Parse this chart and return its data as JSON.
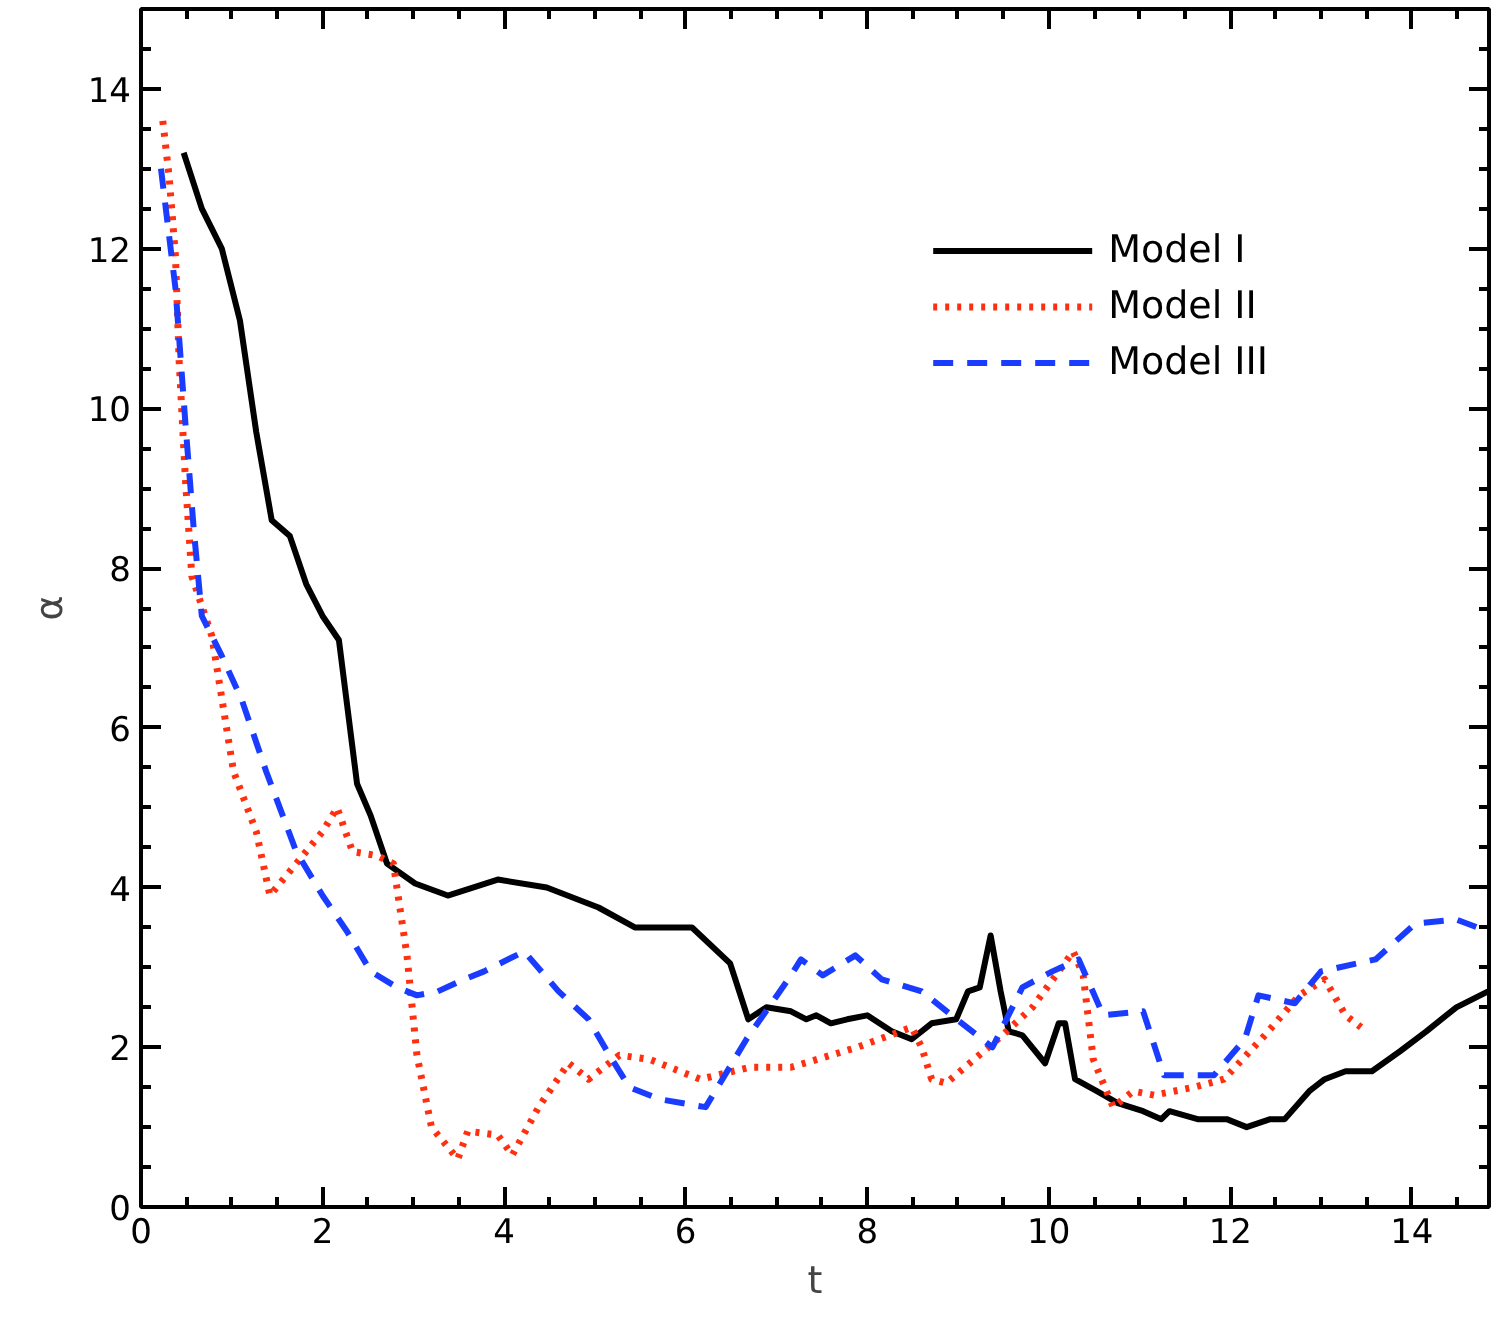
{
  "chart_data": {
    "type": "line",
    "xlabel": "t",
    "ylabel": "α",
    "xlim": [
      0,
      14.85
    ],
    "ylim": [
      0,
      15
    ],
    "xticks": [
      0,
      2,
      4,
      6,
      8,
      10,
      12,
      14
    ],
    "yticks": [
      0,
      2,
      4,
      6,
      8,
      10,
      12,
      14
    ],
    "grid": false,
    "legend": "top right",
    "marker": "none",
    "series": [
      {
        "name": "Model I",
        "color": "#000000",
        "line_style": "solid",
        "x": [
          0.47,
          0.67,
          0.89,
          1.09,
          1.27,
          1.44,
          1.64,
          1.82,
          2.0,
          2.18,
          2.38,
          2.53,
          2.71,
          3.02,
          3.38,
          3.93,
          4.47,
          5.04,
          5.44,
          6.07,
          6.49,
          6.69,
          6.89,
          7.16,
          7.33,
          7.44,
          7.6,
          7.78,
          8.0,
          8.27,
          8.49,
          8.71,
          8.98,
          9.11,
          9.24,
          9.36,
          9.47,
          9.56,
          9.71,
          9.96,
          10.11,
          10.18,
          10.29,
          10.53,
          10.76,
          11.04,
          11.24,
          11.33,
          11.64,
          11.96,
          12.18,
          12.44,
          12.6,
          12.87,
          13.04,
          13.27,
          13.56,
          13.87,
          14.16,
          14.49,
          14.84
        ],
        "values": [
          13.2,
          12.5,
          12.0,
          11.1,
          9.7,
          8.6,
          8.4,
          7.8,
          7.4,
          7.1,
          5.3,
          4.9,
          4.3,
          4.05,
          3.9,
          4.1,
          4.0,
          3.75,
          3.5,
          3.5,
          3.05,
          2.35,
          2.5,
          2.45,
          2.35,
          2.4,
          2.3,
          2.35,
          2.4,
          2.2,
          2.1,
          2.3,
          2.35,
          2.7,
          2.75,
          3.4,
          2.7,
          2.2,
          2.15,
          1.8,
          2.3,
          2.3,
          1.6,
          1.45,
          1.3,
          1.2,
          1.1,
          1.2,
          1.1,
          1.1,
          1.0,
          1.1,
          1.1,
          1.45,
          1.6,
          1.7,
          1.7,
          1.95,
          2.2,
          2.5,
          2.7
        ]
      },
      {
        "name": "Model II",
        "color": "#ff3010",
        "line_style": "dotted",
        "x": [
          0.24,
          0.31,
          0.38,
          0.42,
          0.49,
          0.56,
          0.78,
          1.02,
          1.27,
          1.42,
          1.71,
          2.0,
          2.16,
          2.33,
          2.6,
          2.78,
          2.93,
          3.04,
          3.2,
          3.49,
          3.6,
          3.93,
          4.09,
          4.38,
          4.71,
          4.93,
          5.27,
          5.6,
          6.16,
          6.71,
          7.16,
          7.6,
          7.89,
          8.49,
          8.6,
          8.71,
          8.87,
          9.49,
          9.82,
          10.27,
          10.38,
          10.49,
          10.71,
          10.93,
          11.16,
          11.6,
          11.93,
          12.38,
          12.76,
          13.04,
          13.27,
          13.44
        ],
        "values": [
          13.6,
          12.9,
          11.9,
          10.6,
          9.1,
          7.9,
          7.15,
          5.45,
          4.7,
          3.9,
          4.3,
          4.7,
          5.0,
          4.45,
          4.4,
          4.3,
          3.15,
          1.9,
          1.0,
          0.6,
          0.95,
          0.9,
          0.65,
          1.25,
          1.8,
          1.6,
          1.9,
          1.85,
          1.6,
          1.75,
          1.75,
          1.9,
          2.0,
          2.25,
          2.0,
          1.6,
          1.55,
          2.15,
          2.5,
          3.2,
          2.9,
          1.85,
          1.25,
          1.45,
          1.4,
          1.5,
          1.6,
          2.15,
          2.65,
          2.85,
          2.4,
          2.25
        ]
      },
      {
        "name": "Model III",
        "color": "#1a3cff",
        "line_style": "dashed",
        "x": [
          0.22,
          0.38,
          0.49,
          0.58,
          0.67,
          0.89,
          1.11,
          1.38,
          1.71,
          2.0,
          2.27,
          2.53,
          2.82,
          3.04,
          3.27,
          3.56,
          3.78,
          4.22,
          4.6,
          4.93,
          5.16,
          5.38,
          5.71,
          6.22,
          6.67,
          7.16,
          7.27,
          7.51,
          7.87,
          8.16,
          8.6,
          8.93,
          9.38,
          9.71,
          10.04,
          10.33,
          10.6,
          11.04,
          11.27,
          11.49,
          11.82,
          12.16,
          12.31,
          12.71,
          13.0,
          13.6,
          14.04,
          14.49,
          14.84
        ],
        "values": [
          13.0,
          11.5,
          9.8,
          8.5,
          7.4,
          6.9,
          6.35,
          5.45,
          4.45,
          3.9,
          3.45,
          2.95,
          2.75,
          2.65,
          2.7,
          2.85,
          2.95,
          3.2,
          2.7,
          2.35,
          1.9,
          1.5,
          1.35,
          1.25,
          2.1,
          2.9,
          3.1,
          2.9,
          3.15,
          2.85,
          2.7,
          2.4,
          2.0,
          2.75,
          2.95,
          3.1,
          2.4,
          2.45,
          1.65,
          1.65,
          1.65,
          2.1,
          2.65,
          2.55,
          2.95,
          3.1,
          3.55,
          3.6,
          3.45
        ]
      }
    ]
  }
}
